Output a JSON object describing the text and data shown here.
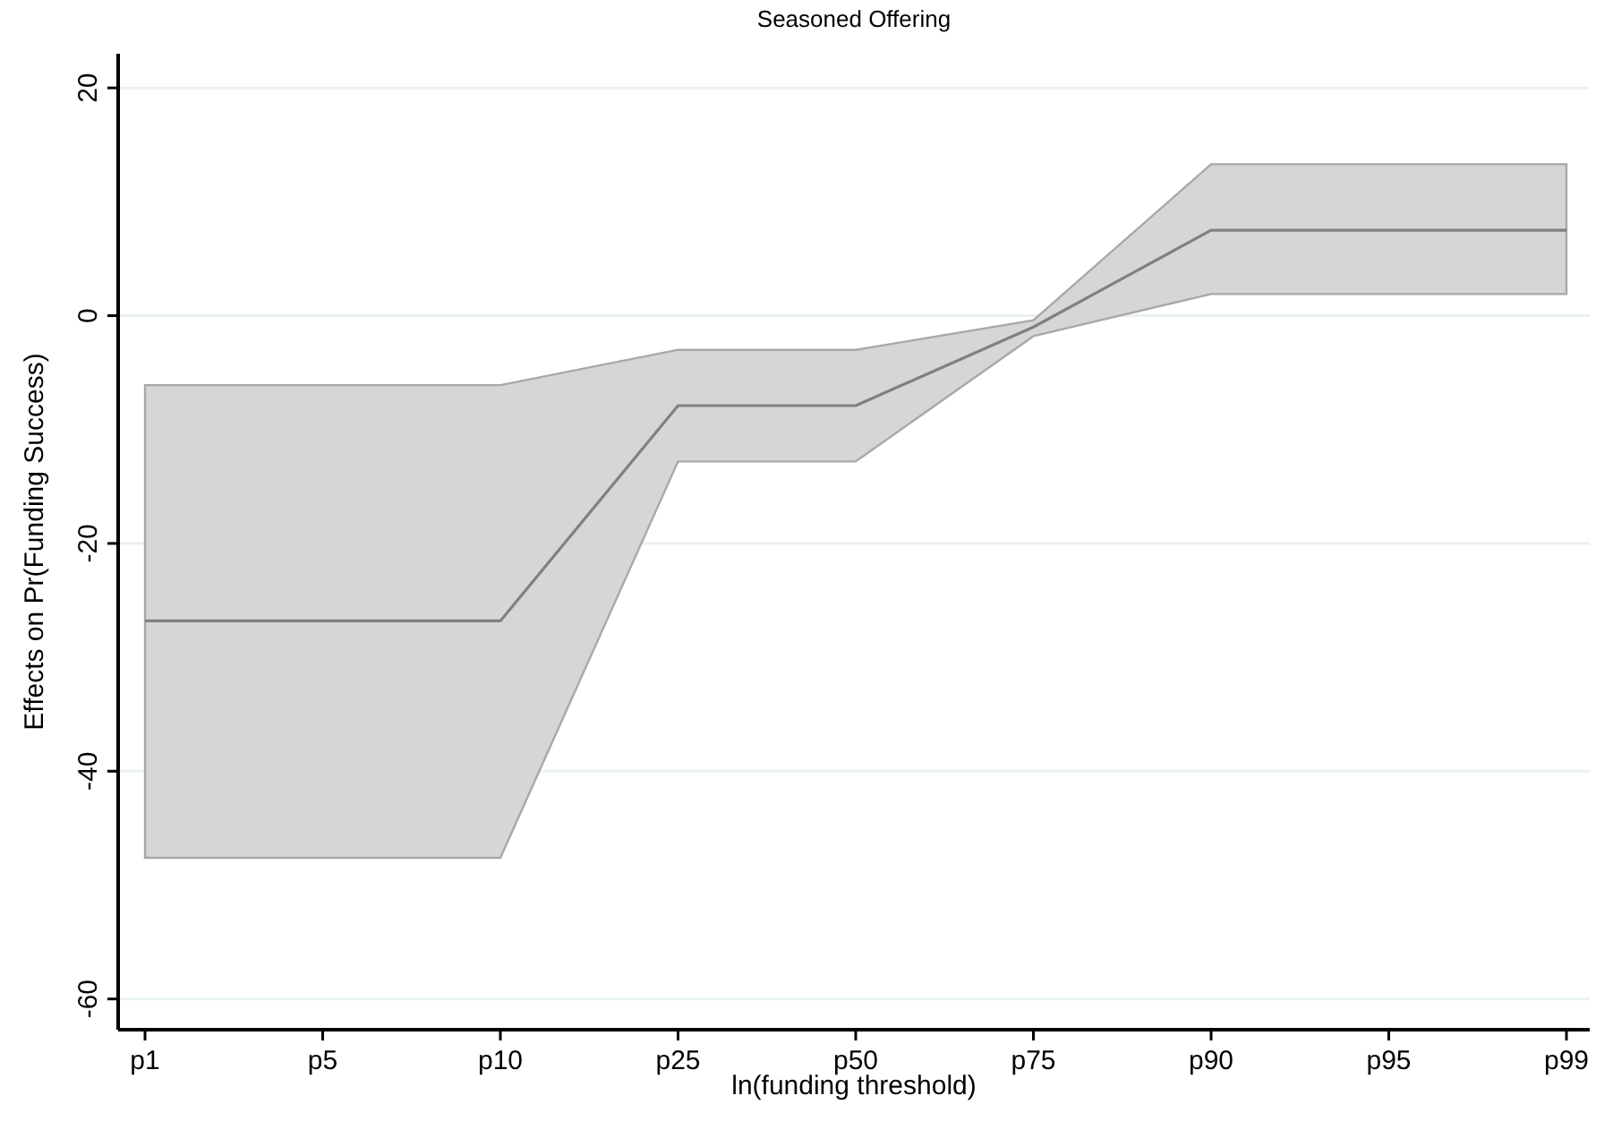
{
  "chart_data": {
    "type": "line",
    "title": "Seasoned Offering",
    "xlabel": "ln(funding threshold)",
    "ylabel": "Effects on Pr(Funding Success)",
    "categories": [
      "p1",
      "p5",
      "p10",
      "p25",
      "p50",
      "p75",
      "p90",
      "p95",
      "p99"
    ],
    "series": [
      {
        "color": "#808080",
        "values": [
          -26.8,
          -26.8,
          -26.8,
          -7.9,
          -7.9,
          -1.0,
          7.5,
          7.5,
          7.5
        ],
        "lower": [
          -47.6,
          -47.6,
          -47.6,
          -12.8,
          -12.8,
          -1.8,
          1.9,
          1.9,
          1.9
        ],
        "upper": [
          -6.1,
          -6.1,
          -6.1,
          -3.0,
          -3.0,
          -0.4,
          13.3,
          13.3,
          13.3
        ]
      }
    ],
    "ylim": [
      -62.7,
      23
    ],
    "yticks": [
      -60,
      -40,
      -20,
      0,
      20
    ],
    "grid": "y",
    "marker": "none",
    "line_style": "solid"
  }
}
